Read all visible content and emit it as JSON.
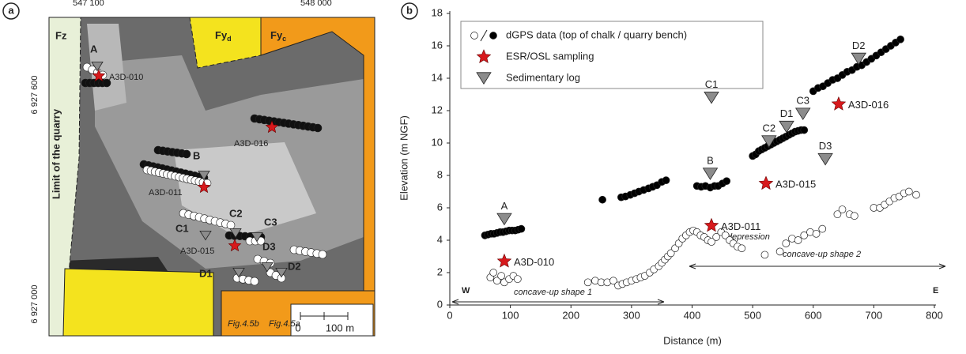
{
  "panel_a": {
    "label": "a",
    "top_coords": [
      "547 100",
      "548 000"
    ],
    "left_coords": [
      "6 927 600",
      "6 927 000"
    ],
    "zones": [
      "Fz",
      {
        "base": "Fy",
        "sub": "d"
      },
      {
        "base": "Fy",
        "sub": "c"
      }
    ],
    "limit_label": "Limit of the quarry",
    "logs": [
      "A",
      "B",
      "C1",
      "C2",
      "C3",
      "D1",
      "D2",
      "D3"
    ],
    "samples": [
      "A3D-010",
      "A3D-011",
      "A3D-015",
      "A3D-016"
    ],
    "figure_refs": [
      "Fig.4.5b",
      "Fig.4.5a"
    ],
    "scale": [
      "0",
      "100 m"
    ]
  },
  "chart_data": {
    "type": "scatter",
    "label": "b",
    "x_label": "Distance (m)",
    "y_label": "Elevation (m NGF)",
    "xlim": [
      0,
      800
    ],
    "xticks": [
      0,
      100,
      200,
      300,
      400,
      500,
      600,
      700,
      800
    ],
    "ylim": [
      0,
      18
    ],
    "yticks": [
      0,
      2,
      4,
      6,
      8,
      10,
      12,
      14,
      16,
      18
    ],
    "legend": "upper left",
    "annotations": [
      "depression",
      "concave-up shape 1",
      "concave-up shape 2",
      "W",
      "E"
    ],
    "series": [
      {
        "name": "dGPS data (top of chalk / quarry bench)",
        "marker": "circle",
        "groups": [
          {
            "color": "#ffffff",
            "x": [
              67,
              72,
              78,
              85,
              90,
              98,
              105,
              112,
              228,
              240,
              250,
              260,
              270,
              278,
              285,
              292,
              300,
              308,
              315,
              322,
              330,
              337,
              345,
              350,
              355,
              360,
              365,
              372,
              378,
              384,
              390,
              396,
              402,
              408,
              414,
              420,
              426,
              432,
              440,
              448,
              455,
              462,
              468,
              475,
              482,
              520,
              545,
              555,
              565,
              575,
              585,
              595,
              605,
              615,
              640,
              648,
              660,
              668,
              700,
              710,
              718,
              726,
              734,
              742,
              750,
              758,
              770
            ],
            "values": [
              1.7,
              2.0,
              1.5,
              1.8,
              1.4,
              1.6,
              1.8,
              1.6,
              1.4,
              1.5,
              1.4,
              1.4,
              1.5,
              1.2,
              1.3,
              1.4,
              1.5,
              1.6,
              1.7,
              1.8,
              2.0,
              2.2,
              2.4,
              2.6,
              2.8,
              3.0,
              3.2,
              3.5,
              3.8,
              4.1,
              4.3,
              4.5,
              4.6,
              4.5,
              4.3,
              4.2,
              4.0,
              3.9,
              4.2,
              4.5,
              4.3,
              4.0,
              3.8,
              3.6,
              3.5,
              3.1,
              3.3,
              3.8,
              4.1,
              4.0,
              4.3,
              4.5,
              4.4,
              4.7,
              5.6,
              5.9,
              5.6,
              5.5,
              6.0,
              6.0,
              6.2,
              6.4,
              6.6,
              6.7,
              6.9,
              7.0,
              6.8
            ]
          },
          {
            "color": "#000000",
            "x": [
              58,
              63,
              68,
              73,
              78,
              83,
              88,
              93,
              98,
              103,
              108,
              113,
              118,
              252,
              283,
              290,
              298,
              305,
              312,
              320,
              328,
              335,
              342,
              350,
              357,
              408,
              415,
              422,
              430,
              437,
              443,
              450,
              457,
              500,
              505,
              510,
              515,
              520,
              525,
              530,
              535,
              540,
              545,
              550,
              555,
              560,
              565,
              570,
              575,
              580,
              585,
              600,
              608,
              616,
              624,
              632,
              640,
              648,
              656,
              664,
              672,
              680,
              688,
              696,
              704,
              712,
              720,
              728,
              736,
              744
            ],
            "values": [
              4.3,
              4.35,
              4.4,
              4.4,
              4.45,
              4.5,
              4.5,
              4.55,
              4.6,
              4.6,
              4.6,
              4.65,
              4.7,
              6.5,
              6.65,
              6.7,
              6.8,
              6.9,
              7.0,
              7.1,
              7.2,
              7.3,
              7.4,
              7.6,
              7.7,
              7.35,
              7.3,
              7.35,
              7.25,
              7.35,
              7.35,
              7.5,
              7.65,
              9.2,
              9.3,
              9.5,
              9.6,
              9.7,
              9.8,
              9.9,
              10.0,
              10.1,
              10.2,
              10.3,
              10.4,
              10.5,
              10.6,
              10.7,
              10.75,
              10.8,
              10.8,
              13.2,
              13.4,
              13.5,
              13.7,
              13.9,
              14.0,
              14.2,
              14.4,
              14.5,
              14.7,
              14.8,
              15.0,
              15.2,
              15.4,
              15.6,
              15.8,
              16.0,
              16.2,
              16.4
            ]
          }
        ]
      },
      {
        "name": "ESR/OSL sampling",
        "marker": "star",
        "color": "#d7191c",
        "x": [
          90,
          432,
          522,
          642
        ],
        "values": [
          2.7,
          4.9,
          7.5,
          12.4
        ],
        "labels": [
          "A3D-010",
          "A3D-011",
          "A3D-015",
          "A3D-016"
        ]
      },
      {
        "name": "Sedimentary log",
        "marker": "triangle",
        "color": "#8c8c8c",
        "x": [
          90,
          430,
          432,
          527,
          583,
          556,
          675,
          620
        ],
        "values": [
          5.3,
          8.1,
          12.8,
          10.1,
          11.8,
          11.0,
          15.2,
          9.0
        ],
        "labels": [
          "A",
          "B",
          "C1",
          "C2",
          "C3",
          "D1",
          "D2",
          "D3"
        ]
      }
    ]
  }
}
